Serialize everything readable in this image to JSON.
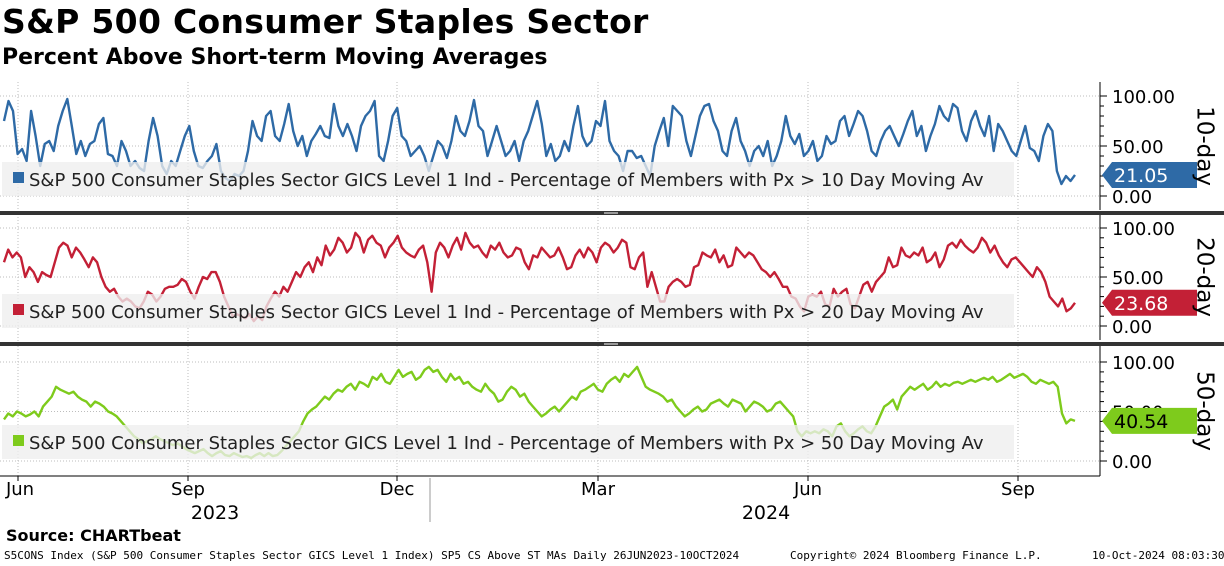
{
  "header": {
    "title": "S&P 500 Consumer Staples Sector",
    "subtitle": "Percent Above Short-term Moving Averages"
  },
  "footer": {
    "source": "Source: CHARTbeat",
    "index_desc": "S5CONS Index (S&P 500 Consumer Staples Sector GICS Level 1 Index) SP5 CS Above ST MAs  Daily 26JUN2023-10OCT2024",
    "copyright": "Copyright© 2024 Bloomberg Finance L.P.",
    "timestamp": "10-Oct-2024 08:03:30"
  },
  "chart_data": {
    "type": "line",
    "x_tick_labels": [
      "Jun",
      "Sep",
      "Dec",
      "Mar",
      "Jun",
      "Sep"
    ],
    "year_labels": [
      "2023",
      "2024"
    ],
    "y_tick_labels": [
      "100.00",
      "50.00",
      "0.00"
    ],
    "ylim": [
      0,
      100
    ],
    "panels": [
      {
        "name": "10-day",
        "side_label": "10-day",
        "color": "#2e6aa6",
        "fade_color": "#8fb2d6",
        "legend": "S&P 500 Consumer Staples Sector GICS Level 1 Ind - Percentage of Members with Px > 10 Day Moving Av",
        "last_value": 21.05,
        "last_label": "21.05",
        "values": [
          75,
          95,
          85,
          42,
          47,
          35,
          85,
          60,
          30,
          52,
          55,
          45,
          70,
          85,
          97,
          70,
          42,
          55,
          40,
          52,
          55,
          72,
          78,
          42,
          40,
          30,
          55,
          45,
          30,
          35,
          28,
          25,
          55,
          78,
          60,
          30,
          22,
          35,
          30,
          45,
          60,
          70,
          45,
          30,
          28,
          35,
          40,
          52,
          25,
          18,
          15,
          22,
          20,
          25,
          45,
          75,
          60,
          55,
          80,
          85,
          60,
          55,
          72,
          92,
          65,
          50,
          60,
          40,
          55,
          62,
          70,
          60,
          58,
          92,
          70,
          60,
          72,
          60,
          45,
          70,
          80,
          85,
          95,
          40,
          35,
          55,
          80,
          88,
          60,
          55,
          40,
          45,
          50,
          40,
          25,
          40,
          55,
          50,
          38,
          55,
          80,
          65,
          60,
          75,
          96,
          70,
          65,
          40,
          55,
          70,
          55,
          40,
          45,
          55,
          35,
          55,
          65,
          80,
          95,
          72,
          40,
          52,
          35,
          40,
          55,
          45,
          70,
          90,
          60,
          50,
          55,
          75,
          70,
          95,
          55,
          45,
          40,
          25,
          45,
          45,
          38,
          40,
          30,
          20,
          50,
          65,
          78,
          50,
          90,
          85,
          80,
          55,
          40,
          60,
          80,
          90,
          92,
          75,
          65,
          45,
          40,
          65,
          78,
          55,
          45,
          30,
          45,
          50,
          40,
          55,
          30,
          40,
          55,
          80,
          60,
          52,
          62,
          40,
          45,
          55,
          35,
          40,
          60,
          52,
          55,
          75,
          80,
          60,
          72,
          85,
          80,
          65,
          45,
          40,
          55,
          65,
          70,
          60,
          50,
          62,
          75,
          85,
          60,
          70,
          45,
          60,
          72,
          90,
          80,
          75,
          92,
          88,
          65,
          55,
          75,
          85,
          70,
          60,
          80,
          45,
          72,
          65,
          55,
          45,
          40,
          55,
          70,
          48,
          45,
          35,
          60,
          72,
          65,
          25,
          12,
          20,
          15,
          21.05
        ]
      },
      {
        "name": "20-day",
        "side_label": "20-day",
        "color": "#c32036",
        "fade_color": "#e09aa4",
        "legend": "S&P 500 Consumer Staples Sector GICS Level 1 Ind - Percentage of Members with Px > 20 Day Moving Av",
        "last_value": 23.68,
        "last_label": "23.68",
        "values": [
          65,
          78,
          70,
          75,
          70,
          50,
          60,
          55,
          45,
          55,
          52,
          50,
          65,
          80,
          85,
          82,
          70,
          80,
          75,
          68,
          60,
          70,
          65,
          50,
          40,
          35,
          38,
          30,
          25,
          28,
          25,
          20,
          18,
          25,
          35,
          32,
          25,
          30,
          38,
          40,
          40,
          42,
          48,
          45,
          35,
          28,
          40,
          50,
          48,
          55,
          55,
          45,
          30,
          20,
          10,
          12,
          10,
          8,
          12,
          5,
          10,
          6,
          20,
          28,
          35,
          30,
          40,
          35,
          45,
          55,
          50,
          60,
          65,
          55,
          70,
          62,
          82,
          72,
          78,
          90,
          85,
          75,
          80,
          95,
          90,
          75,
          88,
          92,
          85,
          82,
          70,
          80,
          85,
          92,
          80,
          75,
          72,
          70,
          78,
          82,
          65,
          35,
          75,
          85,
          80,
          70,
          82,
          90,
          78,
          95,
          85,
          80,
          82,
          75,
          70,
          82,
          78,
          85,
          75,
          70,
          72,
          80,
          78,
          65,
          58,
          72,
          70,
          80,
          75,
          70,
          72,
          80,
          70,
          58,
          60,
          72,
          78,
          70,
          80,
          75,
          65,
          80,
          85,
          82,
          75,
          80,
          88,
          85,
          60,
          58,
          70,
          75,
          40,
          55,
          40,
          25,
          25,
          40,
          45,
          48,
          45,
          40,
          42,
          60,
          62,
          75,
          72,
          70,
          78,
          65,
          72,
          60,
          62,
          80,
          75,
          70,
          75,
          72,
          65,
          58,
          55,
          50,
          55,
          48,
          40,
          40,
          30,
          28,
          20,
          15,
          30,
          32,
          30,
          35,
          22,
          20,
          38,
          30,
          35,
          38,
          22,
          18,
          30,
          42,
          45,
          35,
          45,
          50,
          55,
          70,
          60,
          62,
          80,
          72,
          70,
          75,
          72,
          80,
          65,
          68,
          75,
          60,
          68,
          82,
          85,
          80,
          88,
          82,
          78,
          75,
          80,
          90,
          85,
          75,
          82,
          72,
          65,
          60,
          68,
          70,
          65,
          60,
          55,
          50,
          60,
          55,
          45,
          30,
          25,
          20,
          28,
          15,
          18,
          23.68
        ]
      },
      {
        "name": "50-day",
        "side_label": "50-day",
        "color": "#7ecb1c",
        "fade_color": "#bde28d",
        "legend": "S&P 500 Consumer Staples Sector GICS Level 1 Ind - Percentage of Members with Px > 50 Day Moving Av",
        "last_value": 40.54,
        "last_label": "40.54",
        "values": [
          42,
          48,
          45,
          50,
          48,
          45,
          47,
          50,
          45,
          55,
          60,
          65,
          75,
          72,
          70,
          68,
          70,
          65,
          62,
          60,
          55,
          60,
          58,
          55,
          50,
          48,
          45,
          40,
          35,
          30,
          25,
          22,
          18,
          20,
          22,
          25,
          22,
          20,
          18,
          16,
          18,
          15,
          12,
          10,
          8,
          10,
          12,
          8,
          5,
          8,
          10,
          6,
          5,
          8,
          6,
          4,
          5,
          3,
          6,
          8,
          5,
          8,
          5,
          6,
          10,
          15,
          20,
          25,
          30,
          40,
          48,
          52,
          55,
          60,
          65,
          62,
          68,
          72,
          70,
          75,
          78,
          72,
          80,
          78,
          75,
          85,
          82,
          88,
          80,
          78,
          85,
          92,
          85,
          88,
          90,
          82,
          85,
          92,
          95,
          90,
          92,
          85,
          80,
          88,
          82,
          85,
          78,
          80,
          75,
          72,
          70,
          78,
          72,
          68,
          60,
          62,
          70,
          75,
          72,
          65,
          68,
          60,
          55,
          50,
          45,
          48,
          52,
          55,
          50,
          55,
          60,
          65,
          62,
          70,
          72,
          75,
          78,
          72,
          70,
          78,
          82,
          85,
          80,
          88,
          85,
          90,
          95,
          85,
          75,
          72,
          70,
          68,
          65,
          60,
          62,
          55,
          50,
          45,
          48,
          52,
          55,
          50,
          52,
          58,
          60,
          62,
          58,
          55,
          62,
          60,
          58,
          50,
          55,
          60,
          58,
          55,
          50,
          52,
          58,
          60,
          55,
          50,
          45,
          30,
          25,
          30,
          28,
          30,
          28,
          32,
          30,
          25,
          35,
          38,
          30,
          25,
          28,
          32,
          35,
          30,
          28,
          35,
          45,
          55,
          58,
          62,
          52,
          65,
          70,
          75,
          72,
          75,
          78,
          72,
          75,
          80,
          75,
          78,
          76,
          79,
          80,
          78,
          80,
          82,
          80,
          82,
          84,
          82,
          85,
          80,
          82,
          85,
          88,
          84,
          86,
          88,
          85,
          80,
          78,
          82,
          80,
          78,
          80,
          75,
          48,
          38,
          42,
          40.54
        ]
      }
    ]
  }
}
